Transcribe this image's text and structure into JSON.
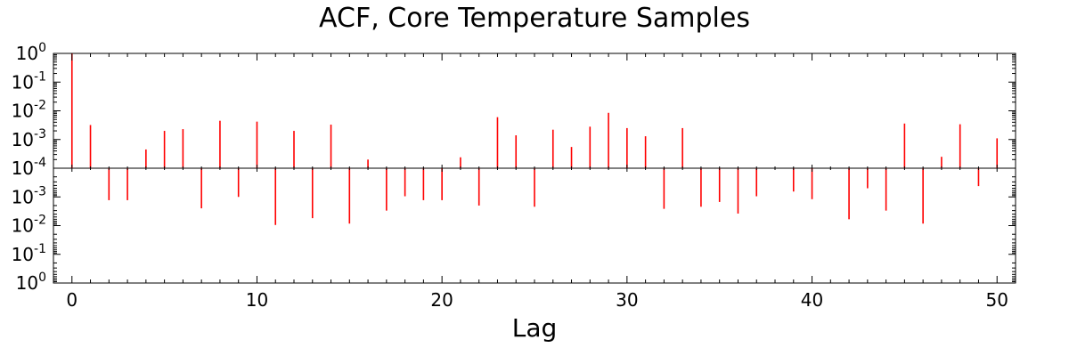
{
  "chart_data": {
    "type": "bar",
    "subtype": "stem",
    "title": "ACF, Core Temperature Samples",
    "xlabel": "Lag",
    "ylabel": "",
    "xlim": [
      -1,
      51
    ],
    "x_ticks": [
      0,
      10,
      20,
      30,
      40,
      50
    ],
    "y_scale": "symlog",
    "y_ticks": [
      {
        "base": "10",
        "exp": "0"
      },
      {
        "base": "10",
        "exp": "-1"
      },
      {
        "base": "10",
        "exp": "-2"
      },
      {
        "base": "10",
        "exp": "-3"
      },
      {
        "base": "10",
        "exp": "-4"
      },
      {
        "base": "10",
        "exp": "-3"
      },
      {
        "base": "10",
        "exp": "-2"
      },
      {
        "base": "10",
        "exp": "-1"
      },
      {
        "base": "10",
        "exp": "0"
      }
    ],
    "grid": false,
    "stem_color": "#ff0000",
    "lags": [
      0,
      1,
      2,
      3,
      4,
      5,
      6,
      7,
      8,
      9,
      10,
      11,
      12,
      13,
      14,
      15,
      16,
      17,
      18,
      19,
      20,
      21,
      22,
      23,
      24,
      25,
      26,
      27,
      28,
      29,
      30,
      31,
      32,
      33,
      34,
      35,
      36,
      37,
      38,
      39,
      40,
      41,
      42,
      43,
      44,
      45,
      46,
      47,
      48,
      49,
      50
    ],
    "values": [
      1.0,
      0.0032,
      -0.0013,
      -0.0013,
      0.00045,
      0.002,
      0.0023,
      -0.0025,
      0.0045,
      -0.001,
      0.0042,
      -0.0095,
      0.002,
      -0.0055,
      0.0033,
      -0.0085,
      0.0002,
      -0.003,
      -0.00095,
      -0.0013,
      -0.0013,
      0.00024,
      -0.002,
      0.006,
      0.0014,
      -0.0022,
      0.0022,
      0.00055,
      0.0028,
      0.0085,
      0.0025,
      0.0013,
      -0.0026,
      0.0025,
      -0.0022,
      -0.0015,
      -0.0038,
      -0.00095,
      0,
      -0.00065,
      -0.0012,
      0,
      -0.006,
      -0.0005,
      -0.003,
      0.0036,
      -0.0085,
      0.00025,
      0.0034,
      -0.00042,
      0.0011
    ]
  }
}
